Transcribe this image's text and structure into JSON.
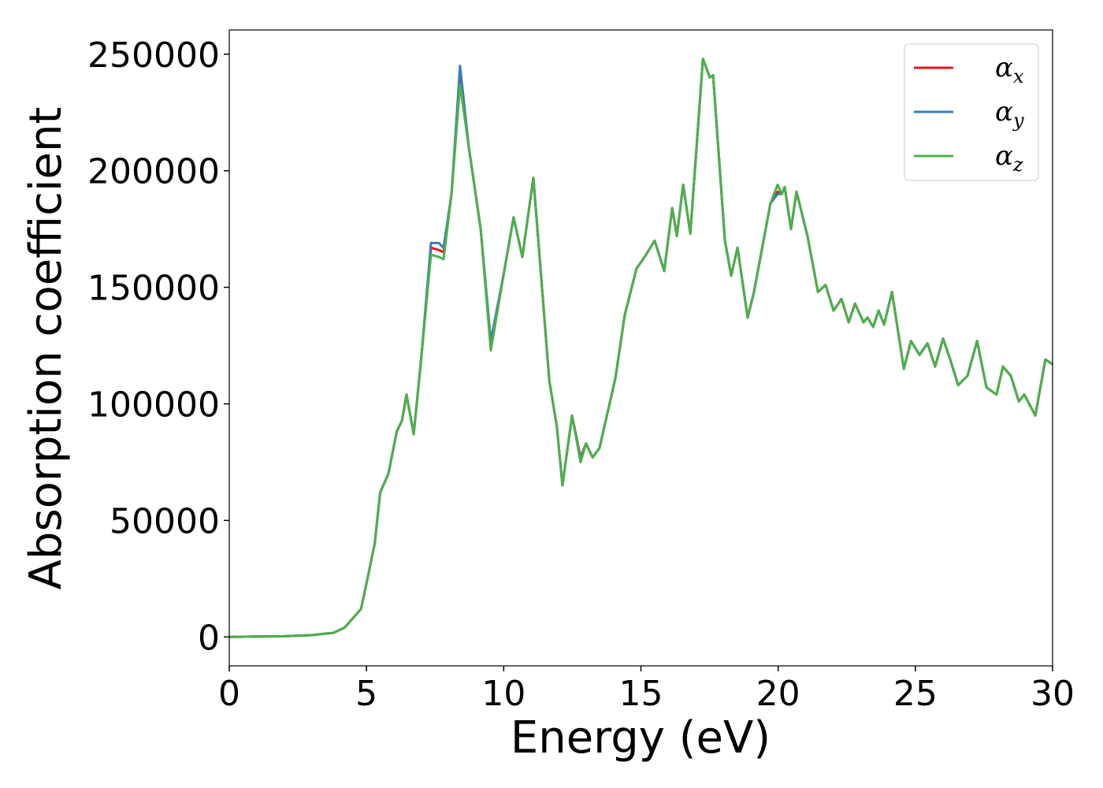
{
  "chart_data": {
    "type": "line",
    "xlabel": "Energy (eV)",
    "ylabel": "Absorption coefficient",
    "x": [
      0,
      2,
      3,
      3.8,
      4.2,
      4.5,
      4.8,
      5.0,
      5.3,
      5.5,
      5.8,
      6.1,
      6.3,
      6.46,
      6.72,
      7.0,
      7.35,
      7.64,
      7.81,
      8.1,
      8.41,
      8.73,
      9.16,
      9.53,
      10.02,
      10.36,
      10.68,
      11.08,
      11.66,
      11.94,
      12.14,
      12.49,
      12.8,
      13.0,
      13.24,
      13.49,
      14.07,
      14.41,
      14.84,
      15.19,
      15.5,
      15.85,
      16.14,
      16.31,
      16.54,
      16.8,
      17.26,
      17.51,
      17.63,
      18.06,
      18.29,
      18.52,
      18.89,
      19.12,
      19.72,
      19.98,
      20.13,
      20.24,
      20.47,
      20.67,
      21.07,
      21.45,
      21.73,
      22.02,
      22.31,
      22.57,
      22.8,
      23.11,
      23.26,
      23.46,
      23.66,
      23.86,
      24.15,
      24.58,
      24.84,
      25.15,
      25.44,
      25.72,
      26.01,
      26.27,
      26.56,
      26.9,
      27.25,
      27.59,
      27.96,
      28.19,
      28.48,
      28.77,
      28.97,
      29.37,
      29.74,
      30
    ],
    "series": [
      {
        "name": "αx",
        "color": "#e41a1c",
        "values": [
          0,
          300,
          800,
          1800,
          4000,
          8000,
          12000,
          23000,
          40000,
          62000,
          70000,
          88000,
          93000,
          104000,
          87000,
          120000,
          167000,
          166000,
          165000,
          190000,
          240000,
          210000,
          175000,
          125000,
          157000,
          180000,
          163000,
          197000,
          110000,
          90000,
          65000,
          95000,
          77000,
          83000,
          77000,
          81000,
          111000,
          138000,
          158000,
          164000,
          170000,
          157000,
          184000,
          172000,
          194000,
          173000,
          248000,
          240000,
          241000,
          170000,
          155000,
          167000,
          137000,
          148000,
          186000,
          191000,
          190000,
          193000,
          175000,
          191000,
          172000,
          148000,
          151000,
          140000,
          145000,
          135000,
          143000,
          135000,
          137000,
          133000,
          140000,
          134000,
          148000,
          115000,
          127000,
          121000,
          126000,
          116000,
          128000,
          119000,
          108000,
          112000,
          127000,
          107000,
          104000,
          116000,
          112000,
          101000,
          104000,
          95000,
          119000,
          117000
        ]
      },
      {
        "name": "αy",
        "color": "#377eb8",
        "values": [
          0,
          300,
          800,
          1800,
          4000,
          8000,
          12000,
          23000,
          40000,
          62000,
          70000,
          88000,
          93000,
          104000,
          87000,
          120000,
          169000,
          169000,
          167000,
          190000,
          245000,
          210000,
          175000,
          127000,
          157000,
          180000,
          163000,
          197000,
          110000,
          90000,
          65000,
          95000,
          76000,
          83000,
          77000,
          81000,
          111000,
          138000,
          158000,
          164000,
          170000,
          157000,
          184000,
          172000,
          194000,
          173000,
          248000,
          240000,
          241000,
          170000,
          155000,
          167000,
          137000,
          148000,
          186000,
          190000,
          190000,
          193000,
          175000,
          191000,
          172000,
          148000,
          151000,
          140000,
          145000,
          135000,
          143000,
          135000,
          137000,
          133000,
          140000,
          134000,
          148000,
          115000,
          127000,
          121000,
          126000,
          116000,
          128000,
          119000,
          108000,
          112000,
          127000,
          107000,
          104000,
          116000,
          112000,
          101000,
          104000,
          95000,
          119000,
          117000
        ]
      },
      {
        "name": "αz",
        "color": "#4daf4a",
        "values": [
          0,
          300,
          800,
          1800,
          4000,
          8000,
          12000,
          23000,
          40000,
          62000,
          70000,
          88000,
          93000,
          104000,
          87000,
          120000,
          164000,
          163000,
          162000,
          190000,
          237000,
          210000,
          175000,
          123000,
          157000,
          180000,
          163000,
          197000,
          110000,
          90000,
          65000,
          95000,
          75000,
          83000,
          77000,
          81000,
          111000,
          138000,
          158000,
          164000,
          170000,
          157000,
          184000,
          172000,
          194000,
          173000,
          248000,
          240000,
          241000,
          170000,
          155000,
          167000,
          137000,
          148000,
          186000,
          194000,
          190000,
          193000,
          175000,
          191000,
          172000,
          148000,
          151000,
          140000,
          145000,
          135000,
          143000,
          135000,
          137000,
          133000,
          140000,
          134000,
          148000,
          115000,
          127000,
          121000,
          126000,
          116000,
          128000,
          119000,
          108000,
          112000,
          127000,
          107000,
          104000,
          116000,
          112000,
          101000,
          104000,
          95000,
          119000,
          117000
        ]
      }
    ],
    "xlim": [
      0,
      30
    ],
    "xticks": [
      0,
      5,
      10,
      15,
      20,
      25,
      30
    ],
    "ylim": [
      -12400,
      260400
    ],
    "yticks": [
      0,
      50000,
      100000,
      150000,
      200000,
      250000
    ],
    "legend": "upper right"
  }
}
